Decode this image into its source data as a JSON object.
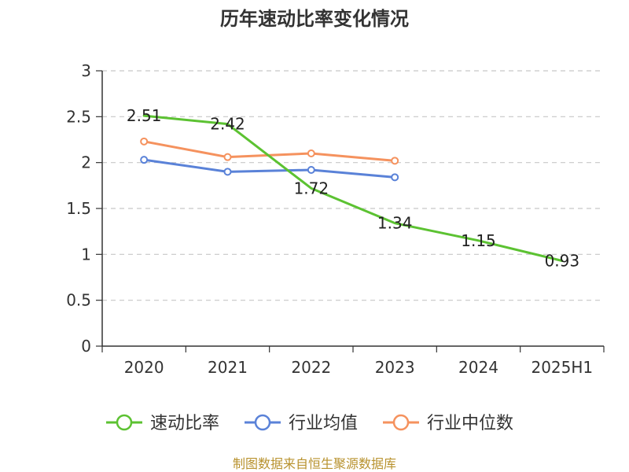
{
  "chart_data": {
    "type": "line",
    "title": "历年速动比率变化情况",
    "categories": [
      "2020",
      "2021",
      "2022",
      "2023",
      "2024",
      "2025H1"
    ],
    "ylim": [
      0,
      3
    ],
    "yticks": [
      "0",
      "0.5",
      "1",
      "1.5",
      "2",
      "2.5",
      "3"
    ],
    "grid": "horizontal dashed",
    "legend_position": "bottom",
    "series": [
      {
        "name": "速动比率",
        "color": "#5cc232",
        "values": [
          2.51,
          2.42,
          1.72,
          1.34,
          1.15,
          0.93
        ],
        "labels": [
          "2.51",
          "2.42",
          "1.72",
          "1.34",
          "1.15",
          "0.93"
        ]
      },
      {
        "name": "行业均值",
        "color": "#5a82d8",
        "values": [
          2.03,
          1.9,
          1.92,
          1.84,
          null,
          null
        ]
      },
      {
        "name": "行业中位数",
        "color": "#f5925e",
        "values": [
          2.23,
          2.06,
          2.1,
          2.02,
          null,
          null
        ]
      }
    ],
    "source": "制图数据来自恒生聚源数据库"
  }
}
